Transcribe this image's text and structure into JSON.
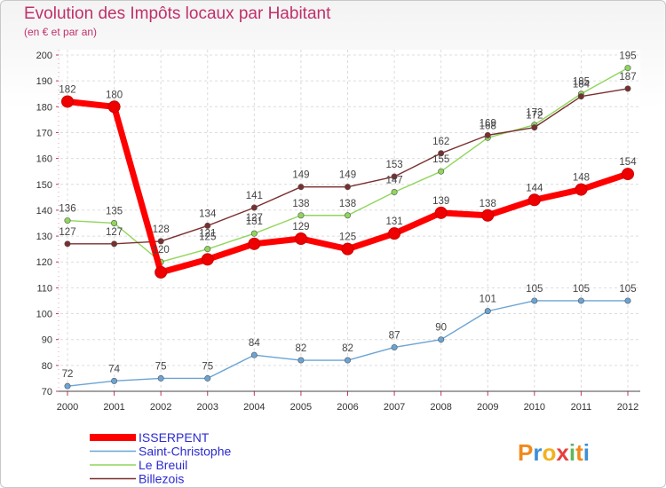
{
  "title": "Evolution des Impôts locaux par Habitant",
  "subtitle": "(en € et par an)",
  "brand": {
    "letters": [
      "P",
      "r",
      "o",
      "x",
      "i",
      "t",
      "i"
    ],
    "colors": [
      "#f08a1c",
      "#3d8fd6",
      "#f2b21e",
      "#e83e3e",
      "#5cb85c",
      "#f08a1c",
      "#3d8fd6"
    ]
  },
  "chart_data": {
    "type": "line",
    "x": [
      "2000",
      "2001",
      "2002",
      "2003",
      "2004",
      "2005",
      "2006",
      "2007",
      "2008",
      "2009",
      "2010",
      "2011",
      "2012"
    ],
    "ylim": [
      70,
      200
    ],
    "yticks": [
      70,
      80,
      90,
      100,
      110,
      120,
      130,
      140,
      150,
      160,
      170,
      180,
      190,
      200
    ],
    "grid": true,
    "legend_position": "bottom-left",
    "series": [
      {
        "name": "ISSERPENT",
        "color": "#ff0000",
        "values": [
          182,
          180,
          116,
          121,
          127,
          129,
          125,
          131,
          139,
          138,
          144,
          148,
          154
        ],
        "labels": [
          "182",
          "180",
          "",
          "",
          "",
          "129",
          "125",
          "131",
          "139",
          "138",
          "144",
          "148",
          "154"
        ]
      },
      {
        "name": "Saint-Christophe",
        "color": "#6aa4d4",
        "values": [
          72,
          74,
          75,
          75,
          84,
          82,
          82,
          87,
          90,
          101,
          105,
          105,
          105
        ],
        "labels": [
          "72",
          "74",
          "75",
          "75",
          "84",
          "82",
          "82",
          "87",
          "90",
          "101",
          "105",
          "105",
          "105"
        ]
      },
      {
        "name": "Le Breuil",
        "color": "#8fd65a",
        "values": [
          136,
          135,
          120,
          125,
          131,
          138,
          138,
          147,
          155,
          168,
          173,
          185,
          195
        ],
        "labels": [
          "136",
          "135",
          "120",
          "125",
          "131",
          "138",
          "138",
          "147",
          "155",
          "168",
          "173",
          "185",
          "195"
        ]
      },
      {
        "name": "Billezois",
        "color": "#7a2f2f",
        "values": [
          127,
          127,
          128,
          134,
          141,
          149,
          149,
          153,
          162,
          169,
          172,
          184,
          187
        ],
        "labels": [
          "127",
          "127",
          "128",
          "134",
          "141",
          "149",
          "149",
          "153",
          "162",
          "169",
          "172",
          "184",
          "187"
        ]
      }
    ],
    "extra_labels": [
      "121",
      "127"
    ]
  }
}
